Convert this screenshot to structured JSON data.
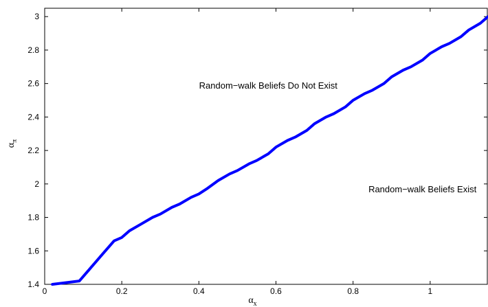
{
  "chart_data": {
    "type": "line",
    "xlabel": "α",
    "xlabel_sub": "x",
    "ylabel": "α",
    "ylabel_sub": "π",
    "xlim": [
      0,
      1.15
    ],
    "ylim": [
      1.4,
      3.05
    ],
    "xticks": [
      0,
      0.2,
      0.4,
      0.6,
      0.8,
      1
    ],
    "yticks": [
      1.4,
      1.6,
      1.8,
      2,
      2.2,
      2.4,
      2.6,
      2.8,
      3
    ],
    "xtick_labels": [
      "0",
      "0.2",
      "0.4",
      "0.6",
      "0.8",
      "1"
    ],
    "ytick_labels": [
      "1.4",
      "1.6",
      "1.8",
      "2",
      "2.2",
      "2.4",
      "2.6",
      "2.8",
      "3"
    ],
    "grid": false,
    "line_color": "#0000ff",
    "series": [
      {
        "x": [
          0.02,
          0.09,
          0.12,
          0.15,
          0.18,
          0.2,
          0.22,
          0.25,
          0.28,
          0.3,
          0.33,
          0.35,
          0.38,
          0.4,
          0.42,
          0.45,
          0.48,
          0.5,
          0.53,
          0.55,
          0.58,
          0.6,
          0.63,
          0.65,
          0.68,
          0.7,
          0.73,
          0.75,
          0.78,
          0.8,
          0.83,
          0.85,
          0.88,
          0.9,
          0.93,
          0.95,
          0.98,
          1.0,
          1.03,
          1.05,
          1.08,
          1.1,
          1.13,
          1.15
        ],
        "y": [
          1.4,
          1.42,
          1.5,
          1.58,
          1.66,
          1.68,
          1.72,
          1.76,
          1.8,
          1.82,
          1.86,
          1.88,
          1.92,
          1.94,
          1.97,
          2.02,
          2.06,
          2.08,
          2.12,
          2.14,
          2.18,
          2.22,
          2.26,
          2.28,
          2.32,
          2.36,
          2.4,
          2.42,
          2.46,
          2.5,
          2.54,
          2.56,
          2.6,
          2.64,
          2.68,
          2.7,
          2.74,
          2.78,
          2.82,
          2.84,
          2.88,
          2.92,
          2.96,
          3.0
        ]
      }
    ],
    "annotations": [
      {
        "text": "Random−walk Beliefs Do Not Exist",
        "x": 0.58,
        "y": 2.57
      },
      {
        "text": "Random−walk Beliefs Exist",
        "x": 0.98,
        "y": 1.95
      }
    ]
  }
}
